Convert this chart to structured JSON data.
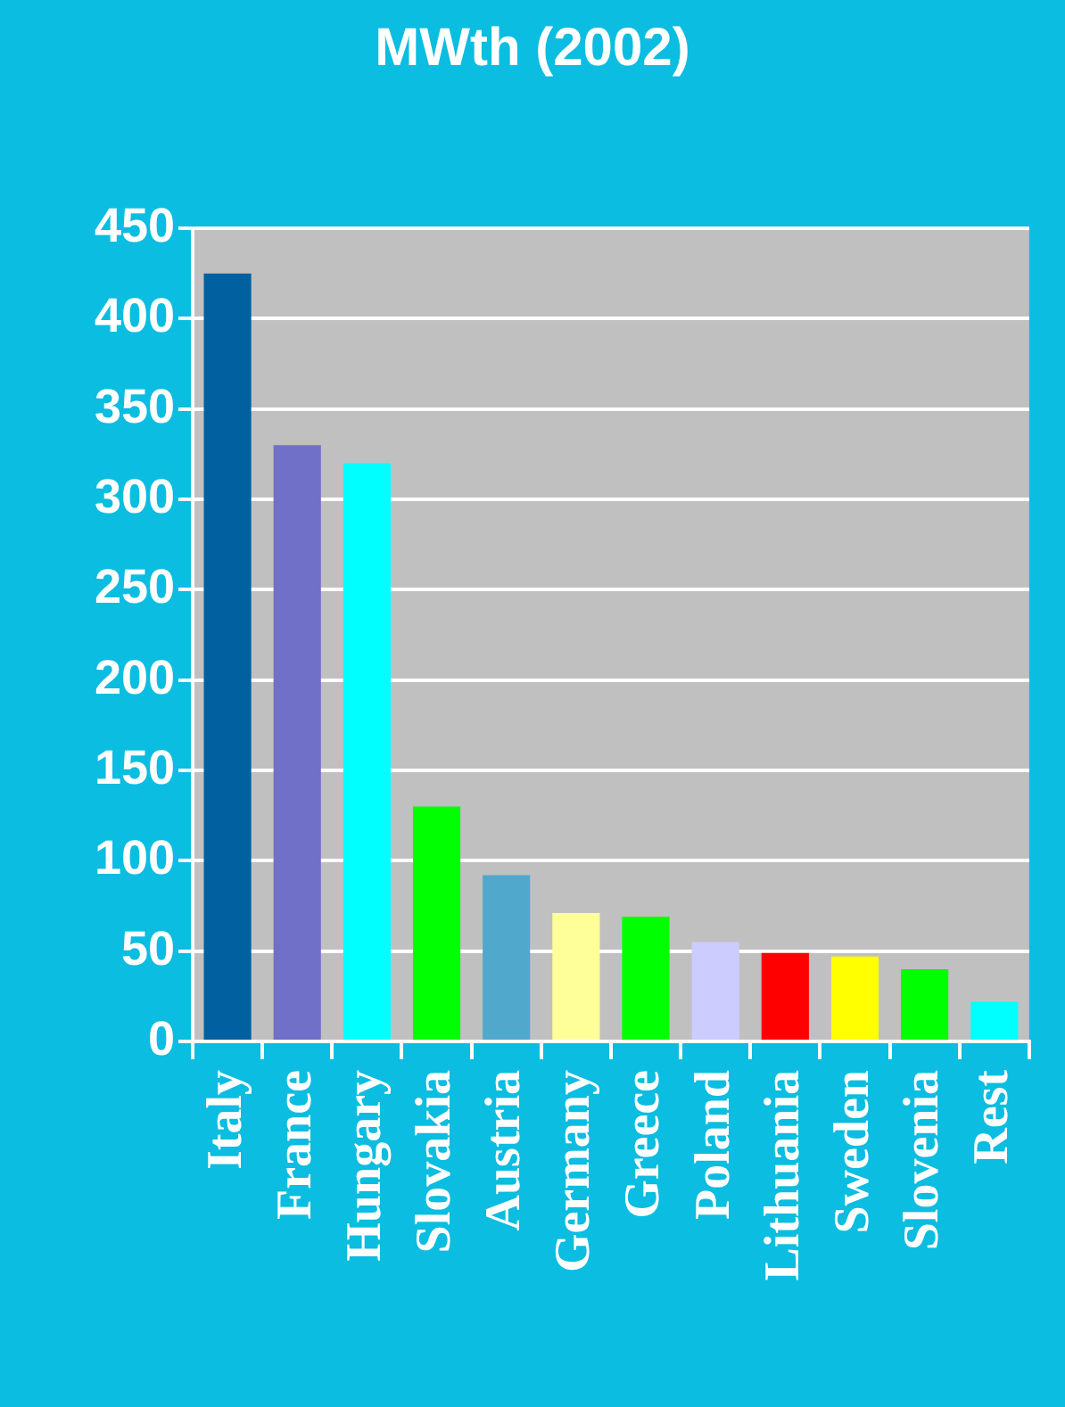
{
  "chart_data": {
    "type": "bar",
    "title": "MWth (2002)",
    "categories": [
      "Italy",
      "France",
      "Hungary",
      "Slovakia",
      "Austria",
      "Germany",
      "Greece",
      "Poland",
      "Lithuania",
      "Sweden",
      "Slovenia",
      "Rest"
    ],
    "values": [
      425,
      330,
      320,
      130,
      92,
      71,
      69,
      55,
      49,
      47,
      40,
      22
    ],
    "colors": [
      "#0060a0",
      "#7070c8",
      "#00ffff",
      "#00ff00",
      "#50a8cc",
      "#ffff99",
      "#00ff00",
      "#ccccff",
      "#ff0000",
      "#ffff00",
      "#00ff00",
      "#00ffff"
    ],
    "ylim": [
      0,
      450
    ],
    "yticks": [
      0,
      50,
      100,
      150,
      200,
      250,
      300,
      350,
      400,
      450
    ],
    "grid": "y"
  }
}
